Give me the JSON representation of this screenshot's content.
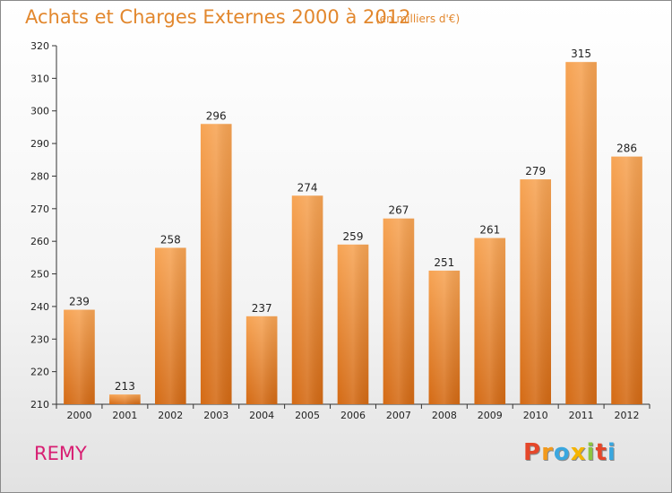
{
  "header": {
    "title": "Achats et Charges Externes 2000 à 2012",
    "subtitle": "(en milliers d'€)"
  },
  "footer": {
    "location": "REMY",
    "logo_text": "Proxiti",
    "logo_colors": [
      "#e5472a",
      "#f39a1c",
      "#3aa7df",
      "#f5b400",
      "#8bc53f",
      "#e5472a",
      "#3aa7df"
    ]
  },
  "chart_data": {
    "type": "bar",
    "categories": [
      "2000",
      "2001",
      "2002",
      "2003",
      "2004",
      "2005",
      "2006",
      "2007",
      "2008",
      "2009",
      "2010",
      "2011",
      "2012"
    ],
    "values": [
      239,
      213,
      258,
      296,
      237,
      274,
      259,
      267,
      251,
      261,
      279,
      315,
      286
    ],
    "title": "Achats et Charges Externes 2000 à 2012",
    "xlabel": "",
    "ylabel": "",
    "ylim": [
      210,
      320
    ],
    "yticks": [
      210,
      220,
      230,
      240,
      250,
      260,
      270,
      280,
      290,
      300,
      310,
      320
    ],
    "grid": false,
    "bar_color": "#f08a2c",
    "bar_color_light": "#f7a454",
    "bar_color_dark": "#d46a14"
  }
}
